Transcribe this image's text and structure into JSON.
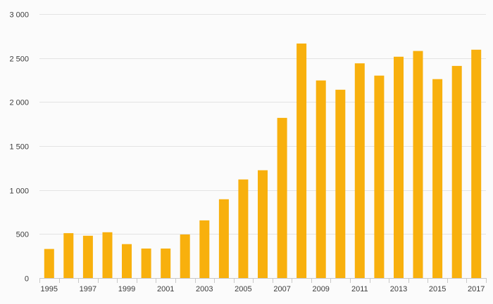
{
  "chart_data": {
    "type": "bar",
    "categories": [
      "1995",
      "1996",
      "1997",
      "1998",
      "1999",
      "2000",
      "2001",
      "2002",
      "2003",
      "2004",
      "2005",
      "2006",
      "2007",
      "2008",
      "2009",
      "2010",
      "2011",
      "2012",
      "2013",
      "2014",
      "2015",
      "2016",
      "2017"
    ],
    "x_tick_labels": [
      "1995",
      "1997",
      "1999",
      "2001",
      "2003",
      "2005",
      "2007",
      "2009",
      "2011",
      "2013",
      "2015",
      "2017"
    ],
    "values": [
      330,
      510,
      480,
      520,
      385,
      335,
      335,
      495,
      655,
      895,
      1120,
      1225,
      1820,
      2665,
      2245,
      2140,
      2440,
      2300,
      2515,
      2580,
      2260,
      2410,
      2595
    ],
    "y_ticks": [
      0,
      500,
      1000,
      1500,
      2000,
      2500,
      3000
    ],
    "y_tick_labels": [
      "0",
      "500",
      "1 000",
      "1 500",
      "2 000",
      "2 500",
      "3 000"
    ],
    "ylim": [
      0,
      3000
    ],
    "title": "",
    "xlabel": "",
    "ylabel": "",
    "grid": true,
    "legend": "none",
    "bar_color": "#f8b00d"
  }
}
